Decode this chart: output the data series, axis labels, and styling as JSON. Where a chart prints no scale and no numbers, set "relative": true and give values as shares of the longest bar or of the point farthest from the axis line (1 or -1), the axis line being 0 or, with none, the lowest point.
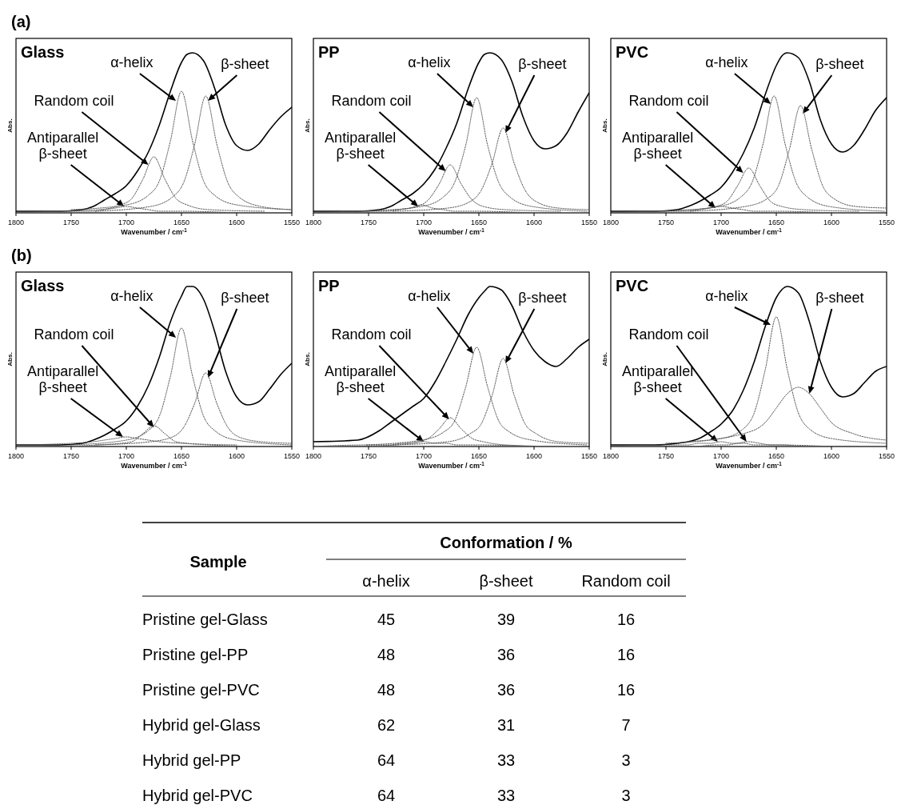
{
  "chart_data": [
    {
      "type": "line",
      "subtitle": "(a)",
      "title": "Glass",
      "xlabel": "Wavenumber / cm$^{-1}$",
      "ylabel": "Abs.",
      "relative": true,
      "xlim": [
        1800,
        1550
      ],
      "xticks": [
        1800,
        1750,
        1700,
        1650,
        1600,
        1550
      ],
      "series": [
        {
          "color": "#000000",
          "line_style": "solid",
          "x": [
            1800,
            1760,
            1740,
            1730,
            1720,
            1710,
            1700,
            1690,
            1680,
            1670,
            1660,
            1650,
            1645,
            1640,
            1630,
            1620,
            1610,
            1600,
            1590,
            1580,
            1570,
            1560,
            1550
          ],
          "values": [
            0.01,
            0.01,
            0.02,
            0.04,
            0.08,
            0.12,
            0.17,
            0.26,
            0.38,
            0.55,
            0.76,
            0.94,
            0.99,
            1,
            0.95,
            0.78,
            0.55,
            0.42,
            0.39,
            0.43,
            0.52,
            0.6,
            0.66
          ]
        },
        {
          "color": "#555555",
          "line_style": "dotted",
          "x": [
            1750,
            1700,
            1680,
            1670,
            1660,
            1650,
            1640,
            1630,
            1620,
            1600,
            1550
          ],
          "values": [
            0.02,
            0.05,
            0.11,
            0.2,
            0.45,
            0.76,
            0.45,
            0.2,
            0.11,
            0.05,
            0.02
          ]
        },
        {
          "color": "#555555",
          "line_style": "dotted",
          "x": [
            1728,
            1678,
            1658,
            1648,
            1638,
            1628,
            1618,
            1608,
            1598,
            1578,
            1550
          ],
          "values": [
            0.01,
            0.04,
            0.1,
            0.19,
            0.43,
            0.73,
            0.43,
            0.19,
            0.1,
            0.04,
            0.02
          ]
        },
        {
          "color": "#555555",
          "line_style": "dotted",
          "x": [
            1775,
            1725,
            1705,
            1695,
            1685,
            1675,
            1665,
            1655,
            1645,
            1625,
            1575
          ],
          "values": [
            0.01,
            0.02,
            0.05,
            0.09,
            0.21,
            0.35,
            0.21,
            0.09,
            0.05,
            0.02,
            0.01
          ]
        },
        {
          "color": "#555555",
          "line_style": "dotted",
          "x": [
            1800,
            1750,
            1730,
            1720,
            1710,
            1700,
            1690,
            1680,
            1670,
            1650,
            1600
          ],
          "values": [
            0,
            0.01,
            0.01,
            0.02,
            0.03,
            0.04,
            0.03,
            0.02,
            0.01,
            0.01,
            0
          ]
        }
      ],
      "annotations": [
        {
          "text": "α-helix",
          "x": 1655,
          "y": 0.7
        },
        {
          "text": "β-sheet",
          "x": 1626,
          "y": 0.7
        },
        {
          "text": "Random coil",
          "x": 1680,
          "y": 0.3
        },
        {
          "text": "Antiparallel β-sheet",
          "x": 1702,
          "y": 0.04
        }
      ]
    },
    {
      "type": "line",
      "title": "PP",
      "xlabel": "Wavenumber / cm$^{-1}$",
      "ylabel": "Abs.",
      "relative": true,
      "xlim": [
        1800,
        1550
      ],
      "xticks": [
        1800,
        1750,
        1700,
        1650,
        1600,
        1550
      ],
      "series": [
        {
          "color": "#000000",
          "line_style": "solid",
          "x": [
            1800,
            1760,
            1740,
            1730,
            1720,
            1710,
            1700,
            1690,
            1680,
            1670,
            1660,
            1650,
            1645,
            1640,
            1630,
            1620,
            1610,
            1600,
            1590,
            1580,
            1570,
            1560,
            1550
          ],
          "values": [
            0.01,
            0.01,
            0.02,
            0.04,
            0.08,
            0.12,
            0.18,
            0.27,
            0.4,
            0.56,
            0.77,
            0.94,
            0.99,
            1,
            0.96,
            0.82,
            0.6,
            0.45,
            0.4,
            0.42,
            0.5,
            0.63,
            0.75
          ]
        },
        {
          "color": "#555555",
          "line_style": "dotted",
          "x": [
            1752,
            1702,
            1682,
            1672,
            1662,
            1652,
            1642,
            1632,
            1622,
            1602,
            1552
          ],
          "values": [
            0.01,
            0.04,
            0.1,
            0.19,
            0.42,
            0.72,
            0.42,
            0.19,
            0.1,
            0.04,
            0.01
          ]
        },
        {
          "color": "#555555",
          "line_style": "dotted",
          "x": [
            1728,
            1678,
            1658,
            1648,
            1638,
            1628,
            1618,
            1608,
            1598,
            1578,
            1550
          ],
          "values": [
            0.01,
            0.03,
            0.07,
            0.14,
            0.31,
            0.53,
            0.31,
            0.14,
            0.07,
            0.03,
            0.02
          ]
        },
        {
          "color": "#555555",
          "line_style": "dotted",
          "x": [
            1776,
            1726,
            1706,
            1696,
            1686,
            1676,
            1666,
            1656,
            1646,
            1626,
            1576
          ],
          "values": [
            0.01,
            0.02,
            0.04,
            0.08,
            0.18,
            0.3,
            0.18,
            0.08,
            0.04,
            0.02,
            0.01
          ]
        },
        {
          "color": "#555555",
          "line_style": "dotted",
          "x": [
            1800,
            1752,
            1732,
            1722,
            1712,
            1702,
            1692,
            1682,
            1672,
            1652,
            1602
          ],
          "values": [
            0,
            0.01,
            0.01,
            0.02,
            0.03,
            0.05,
            0.03,
            0.02,
            0.01,
            0.01,
            0
          ]
        }
      ],
      "annotations": [
        {
          "text": "α-helix",
          "x": 1655,
          "y": 0.66
        },
        {
          "text": "β-sheet",
          "x": 1626,
          "y": 0.5
        },
        {
          "text": "Random coil",
          "x": 1680,
          "y": 0.26
        },
        {
          "text": "Antiparallel β-sheet",
          "x": 1705,
          "y": 0.04
        }
      ]
    },
    {
      "type": "line",
      "title": "PVC",
      "xlabel": "Wavenumber / cm$^{-1}$",
      "ylabel": "Abs.",
      "relative": true,
      "xlim": [
        1800,
        1550
      ],
      "xticks": [
        1800,
        1750,
        1700,
        1650,
        1600,
        1550
      ],
      "series": [
        {
          "color": "#000000",
          "line_style": "solid",
          "x": [
            1800,
            1760,
            1740,
            1730,
            1720,
            1710,
            1700,
            1690,
            1680,
            1670,
            1660,
            1650,
            1645,
            1640,
            1630,
            1620,
            1610,
            1600,
            1590,
            1580,
            1570,
            1560,
            1550
          ],
          "values": [
            0.01,
            0.01,
            0.02,
            0.04,
            0.07,
            0.11,
            0.16,
            0.25,
            0.37,
            0.53,
            0.74,
            0.92,
            0.98,
            1,
            0.97,
            0.82,
            0.58,
            0.43,
            0.38,
            0.42,
            0.52,
            0.64,
            0.72
          ]
        },
        {
          "color": "#555555",
          "line_style": "dotted",
          "x": [
            1752,
            1702,
            1682,
            1672,
            1662,
            1652,
            1642,
            1632,
            1622,
            1602,
            1552
          ],
          "values": [
            0.01,
            0.04,
            0.1,
            0.19,
            0.43,
            0.73,
            0.43,
            0.19,
            0.1,
            0.04,
            0.01
          ]
        },
        {
          "color": "#555555",
          "line_style": "dotted",
          "x": [
            1728,
            1678,
            1658,
            1648,
            1638,
            1628,
            1618,
            1608,
            1598,
            1578,
            1550
          ],
          "values": [
            0.01,
            0.04,
            0.09,
            0.17,
            0.4,
            0.67,
            0.4,
            0.17,
            0.09,
            0.04,
            0.03
          ]
        },
        {
          "color": "#555555",
          "line_style": "dotted",
          "x": [
            1775,
            1725,
            1705,
            1695,
            1685,
            1675,
            1665,
            1655,
            1645,
            1625,
            1575
          ],
          "values": [
            0.01,
            0.02,
            0.04,
            0.07,
            0.17,
            0.28,
            0.17,
            0.07,
            0.04,
            0.02,
            0.01
          ]
        },
        {
          "color": "#555555",
          "line_style": "dotted",
          "x": [
            1800,
            1750,
            1730,
            1720,
            1710,
            1700,
            1690,
            1680,
            1670,
            1650,
            1600
          ],
          "values": [
            0,
            0.01,
            0.01,
            0.02,
            0.03,
            0.04,
            0.03,
            0.02,
            0.01,
            0.01,
            0
          ]
        }
      ],
      "annotations": [
        {
          "text": "α-helix",
          "x": 1655,
          "y": 0.68
        },
        {
          "text": "β-sheet",
          "x": 1626,
          "y": 0.62
        },
        {
          "text": "Random coil",
          "x": 1680,
          "y": 0.25
        },
        {
          "text": "Antiparallel β-sheet",
          "x": 1705,
          "y": 0.03
        }
      ]
    },
    {
      "type": "line",
      "subtitle": "(b)",
      "title": "Glass",
      "xlabel": "Wavenumber / cm$^{-1}$",
      "ylabel": "Abs.",
      "relative": true,
      "xlim": [
        1800,
        1550
      ],
      "xticks": [
        1800,
        1750,
        1700,
        1650,
        1600,
        1550
      ],
      "series": [
        {
          "color": "#000000",
          "line_style": "solid",
          "x": [
            1800,
            1760,
            1740,
            1730,
            1720,
            1710,
            1700,
            1690,
            1680,
            1670,
            1660,
            1650,
            1645,
            1640,
            1630,
            1620,
            1610,
            1600,
            1590,
            1580,
            1570,
            1560,
            1550
          ],
          "values": [
            0.01,
            0.01,
            0.02,
            0.04,
            0.07,
            0.11,
            0.16,
            0.25,
            0.38,
            0.56,
            0.78,
            0.94,
            1,
            1,
            0.92,
            0.72,
            0.47,
            0.31,
            0.26,
            0.28,
            0.36,
            0.45,
            0.52
          ]
        },
        {
          "color": "#555555",
          "line_style": "dotted",
          "x": [
            1750,
            1700,
            1680,
            1670,
            1660,
            1650,
            1640,
            1630,
            1620,
            1600,
            1550
          ],
          "values": [
            0.01,
            0.04,
            0.1,
            0.19,
            0.44,
            0.74,
            0.44,
            0.19,
            0.1,
            0.04,
            0.01
          ]
        },
        {
          "color": "#555555",
          "line_style": "dotted",
          "x": [
            1728,
            1678,
            1658,
            1648,
            1638,
            1628,
            1618,
            1608,
            1598,
            1578,
            1550
          ],
          "values": [
            0.01,
            0.03,
            0.06,
            0.12,
            0.27,
            0.46,
            0.27,
            0.12,
            0.06,
            0.03,
            0.02
          ]
        },
        {
          "color": "#555555",
          "line_style": "dotted",
          "x": [
            1775,
            1725,
            1705,
            1695,
            1685,
            1675,
            1665,
            1655,
            1645,
            1625,
            1575
          ],
          "values": [
            0,
            0.01,
            0.02,
            0.03,
            0.08,
            0.13,
            0.08,
            0.03,
            0.02,
            0.01,
            0
          ]
        },
        {
          "color": "#555555",
          "line_style": "dotted",
          "x": [
            1800,
            1750,
            1730,
            1720,
            1710,
            1700,
            1690,
            1680,
            1670,
            1650,
            1600
          ],
          "values": [
            0.01,
            0.02,
            0.03,
            0.04,
            0.05,
            0.06,
            0.05,
            0.04,
            0.03,
            0.02,
            0.01
          ]
        }
      ],
      "annotations": [
        {
          "text": "α-helix",
          "x": 1655,
          "y": 0.68
        },
        {
          "text": "β-sheet",
          "x": 1626,
          "y": 0.43
        },
        {
          "text": "Random coil",
          "x": 1675,
          "y": 0.12
        },
        {
          "text": "Antiparallel β-sheet",
          "x": 1703,
          "y": 0.06
        }
      ]
    },
    {
      "type": "line",
      "title": "PP",
      "xlabel": "Wavenumber / cm$^{-1}$",
      "ylabel": "Abs.",
      "relative": true,
      "xlim": [
        1800,
        1550
      ],
      "xticks": [
        1800,
        1750,
        1700,
        1650,
        1600,
        1550
      ],
      "series": [
        {
          "color": "#000000",
          "line_style": "solid",
          "x": [
            1800,
            1760,
            1740,
            1730,
            1720,
            1710,
            1700,
            1690,
            1680,
            1670,
            1660,
            1650,
            1645,
            1640,
            1630,
            1620,
            1610,
            1600,
            1590,
            1580,
            1570,
            1560,
            1550
          ],
          "values": [
            0.03,
            0.04,
            0.1,
            0.15,
            0.2,
            0.25,
            0.3,
            0.4,
            0.53,
            0.67,
            0.82,
            0.93,
            0.97,
            1,
            0.98,
            0.88,
            0.72,
            0.6,
            0.53,
            0.5,
            0.55,
            0.62,
            0.67
          ]
        },
        {
          "color": "#555555",
          "line_style": "dotted",
          "x": [
            1752,
            1702,
            1682,
            1672,
            1662,
            1652,
            1642,
            1632,
            1622,
            1602,
            1552
          ],
          "values": [
            0.01,
            0.04,
            0.09,
            0.16,
            0.37,
            0.62,
            0.37,
            0.16,
            0.09,
            0.04,
            0.01
          ]
        },
        {
          "color": "#555555",
          "line_style": "dotted",
          "x": [
            1728,
            1678,
            1658,
            1648,
            1638,
            1628,
            1618,
            1608,
            1598,
            1578,
            1550
          ],
          "values": [
            0.01,
            0.03,
            0.08,
            0.14,
            0.32,
            0.55,
            0.32,
            0.14,
            0.08,
            0.03,
            0.02
          ]
        },
        {
          "color": "#555555",
          "line_style": "dotted",
          "x": [
            1776,
            1726,
            1706,
            1696,
            1686,
            1676,
            1666,
            1656,
            1646,
            1626,
            1576
          ],
          "values": [
            0,
            0.01,
            0.03,
            0.05,
            0.11,
            0.18,
            0.11,
            0.05,
            0.03,
            0.01,
            0
          ]
        },
        {
          "color": "#555555",
          "line_style": "dotted",
          "x": [
            1800,
            1750,
            1730,
            1720,
            1710,
            1700,
            1690,
            1680,
            1670,
            1650,
            1600
          ],
          "values": [
            0,
            0.01,
            0.01,
            0.02,
            0.02,
            0.03,
            0.02,
            0.02,
            0.01,
            0.01,
            0
          ]
        }
      ],
      "annotations": [
        {
          "text": "α-helix",
          "x": 1655,
          "y": 0.58
        },
        {
          "text": "β-sheet",
          "x": 1626,
          "y": 0.52
        },
        {
          "text": "Random coil",
          "x": 1677,
          "y": 0.17
        },
        {
          "text": "Antiparallel β-sheet",
          "x": 1700,
          "y": 0.03
        }
      ]
    },
    {
      "type": "line",
      "title": "PVC",
      "xlabel": "Wavenumber / cm$^{-1}$",
      "ylabel": "Abs.",
      "relative": true,
      "xlim": [
        1800,
        1550
      ],
      "xticks": [
        1800,
        1750,
        1700,
        1650,
        1600,
        1550
      ],
      "series": [
        {
          "color": "#000000",
          "line_style": "solid",
          "x": [
            1800,
            1760,
            1740,
            1730,
            1720,
            1710,
            1700,
            1690,
            1680,
            1670,
            1660,
            1650,
            1645,
            1640,
            1630,
            1620,
            1610,
            1600,
            1590,
            1580,
            1570,
            1560,
            1550
          ],
          "values": [
            0.01,
            0.01,
            0.02,
            0.03,
            0.05,
            0.09,
            0.14,
            0.22,
            0.35,
            0.53,
            0.75,
            0.93,
            0.98,
            1,
            0.96,
            0.78,
            0.53,
            0.37,
            0.31,
            0.33,
            0.4,
            0.47,
            0.5
          ]
        },
        {
          "color": "#555555",
          "line_style": "dotted",
          "x": [
            1750,
            1700,
            1680,
            1670,
            1660,
            1650,
            1640,
            1630,
            1620,
            1600,
            1550
          ],
          "values": [
            0.02,
            0.05,
            0.11,
            0.21,
            0.48,
            0.81,
            0.48,
            0.21,
            0.11,
            0.05,
            0.02
          ]
        },
        {
          "color": "#555555",
          "line_style": "dotted",
          "x": [
            1730,
            1680,
            1660,
            1650,
            1640,
            1630,
            1620,
            1610,
            1600,
            1580,
            1550
          ],
          "values": [
            0.03,
            0.08,
            0.15,
            0.24,
            0.33,
            0.37,
            0.33,
            0.24,
            0.15,
            0.08,
            0.04
          ]
        },
        {
          "color": "#555555",
          "line_style": "dotted",
          "x": [
            1775,
            1725,
            1705,
            1695,
            1685,
            1675,
            1665,
            1655,
            1645,
            1625,
            1575
          ],
          "values": [
            0,
            0,
            0.01,
            0.01,
            0.02,
            0.03,
            0.02,
            0.01,
            0.01,
            0,
            0
          ]
        },
        {
          "color": "#555555",
          "line_style": "dotted",
          "x": [
            1800,
            1750,
            1730,
            1720,
            1710,
            1700,
            1690,
            1680,
            1670,
            1650,
            1600
          ],
          "values": [
            0,
            0.01,
            0.01,
            0.02,
            0.02,
            0.03,
            0.02,
            0.02,
            0.01,
            0.01,
            0
          ]
        }
      ],
      "annotations": [
        {
          "text": "α-helix",
          "x": 1655,
          "y": 0.76
        },
        {
          "text": "β-sheet",
          "x": 1620,
          "y": 0.33
        },
        {
          "text": "Random coil",
          "x": 1677,
          "y": 0.03
        },
        {
          "text": "Antiparallel β-sheet",
          "x": 1703,
          "y": 0.03
        }
      ]
    },
    {
      "type": "heatmap",
      "title": "Conformation / %",
      "ylabel": "Sample",
      "categories": [
        "α-helix",
        "β-sheet",
        "Random coil"
      ],
      "y_categories": [
        "Pristine gel-Glass",
        "Pristine gel-PP",
        "Pristine gel-PVC",
        "Hybrid gel-Glass",
        "Hybrid gel-PP",
        "Hybrid gel-PVC"
      ],
      "data_labels": true,
      "cells": [
        [
          45,
          39,
          16
        ],
        [
          48,
          36,
          16
        ],
        [
          48,
          36,
          16
        ],
        [
          62,
          31,
          7
        ],
        [
          64,
          33,
          3
        ],
        [
          64,
          33,
          3
        ]
      ]
    }
  ]
}
